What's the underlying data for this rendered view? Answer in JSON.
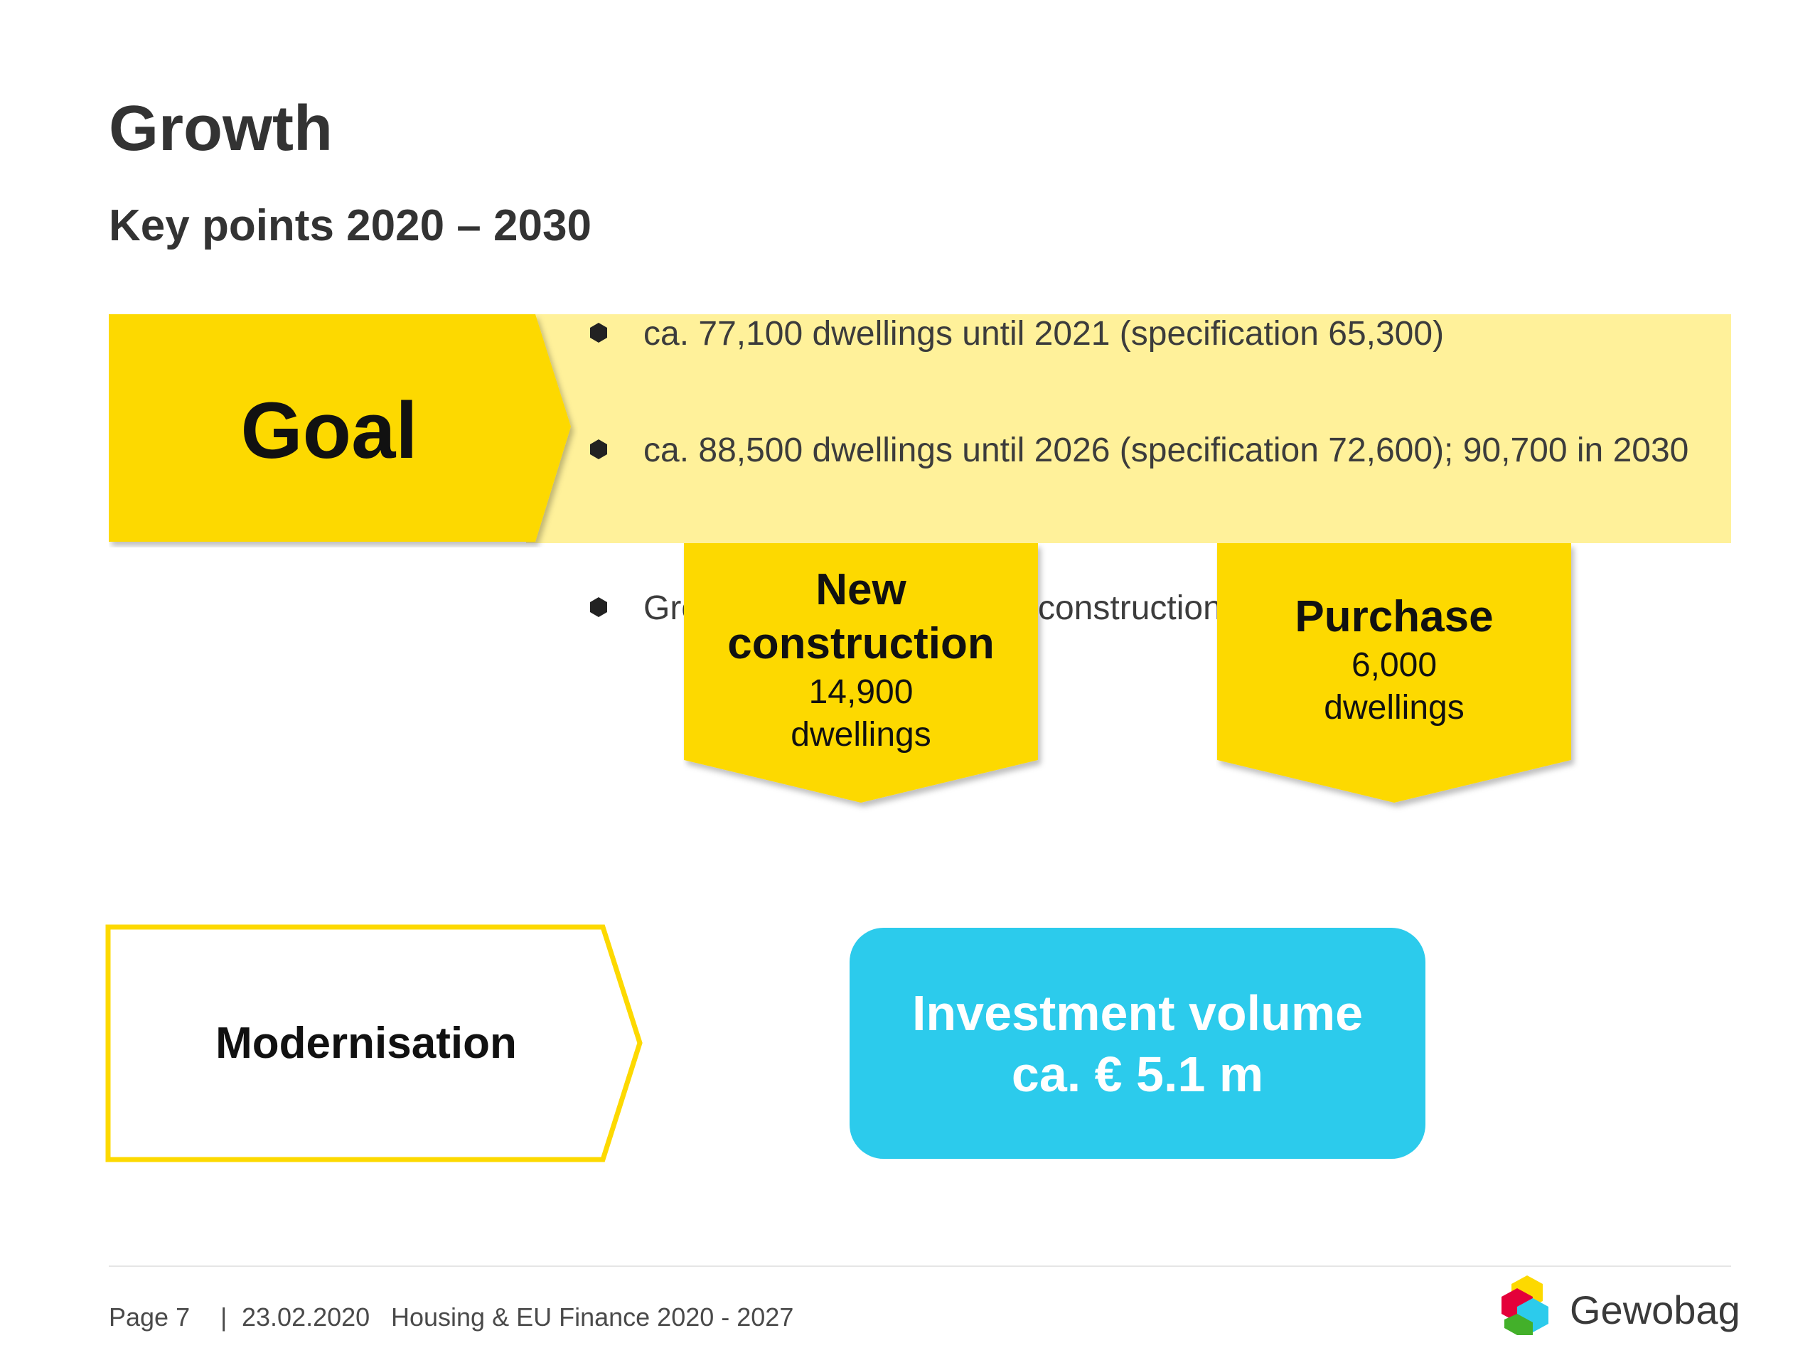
{
  "slide": {
    "title": "Growth",
    "subtitle": "Key points 2020 – 2030"
  },
  "goal": {
    "label": "Goal",
    "bullets": [
      "ca. 77,100 dwellings until 2021 (specification 65,300)",
      "ca. 88,500 dwellings until 2026 (specification 72,600); 90,700 in 2030",
      "Growth through 71% new construction and 29% purchase"
    ]
  },
  "new_construction": {
    "heading": "New construction",
    "value": "14,900",
    "unit": "dwellings"
  },
  "purchase": {
    "heading": "Purchase",
    "value": "6,000",
    "unit": "dwellings"
  },
  "modernisation": {
    "label": "Modernisation"
  },
  "investment": {
    "line1": "Investment volume",
    "line2": "ca. € 5.1 m"
  },
  "footer": {
    "page": "Page 7",
    "separator": "|",
    "date": "23.02.2020",
    "document": "Housing & EU Finance 2020 - 2027",
    "logo": "Gewobag"
  },
  "colors": {
    "accent_yellow": "#fdd900",
    "light_yellow": "#fff19a",
    "investment_blue": "#2ccbec",
    "text_dark": "#333333"
  }
}
